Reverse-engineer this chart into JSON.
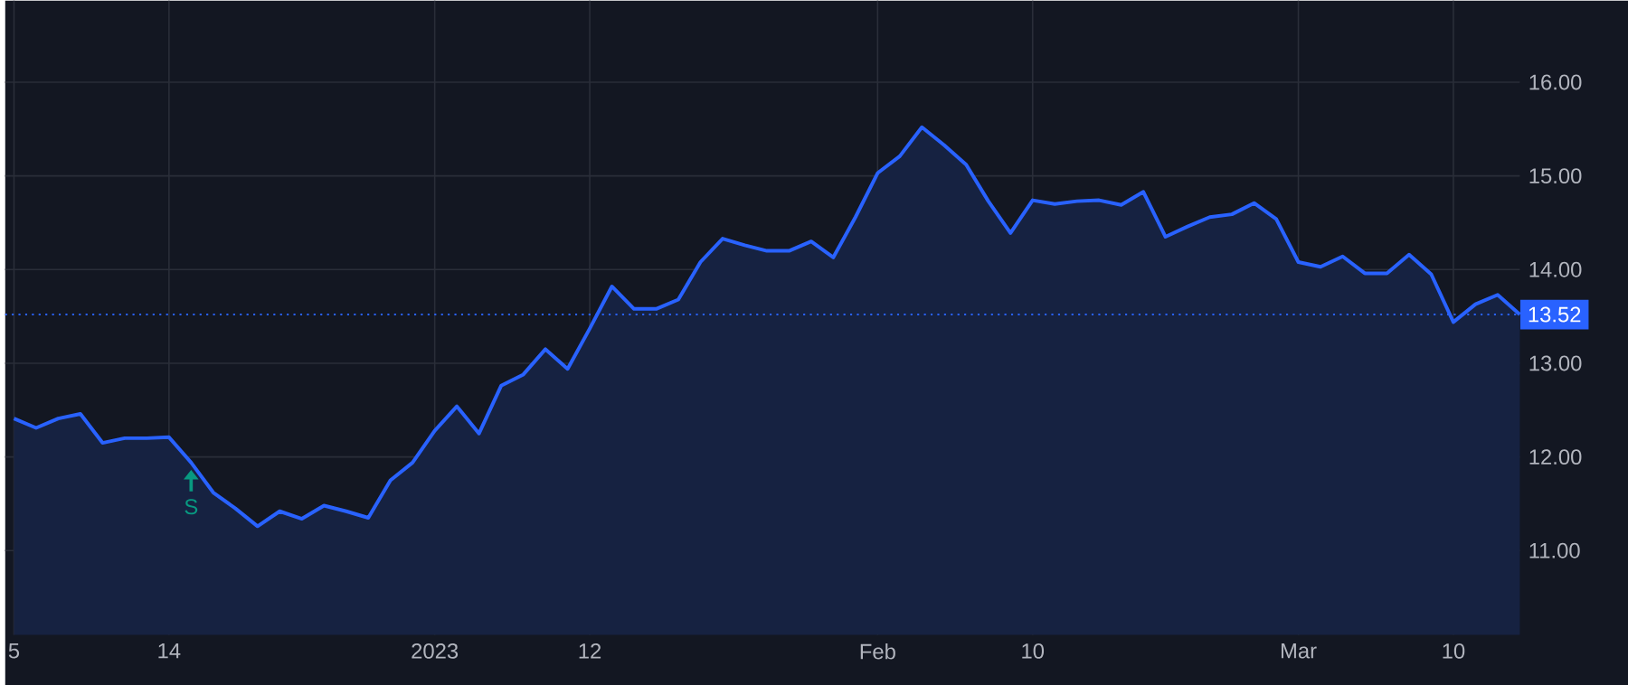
{
  "chart_data": {
    "type": "area",
    "categories": [
      "5",
      null,
      null,
      null,
      null,
      null,
      null,
      "14",
      null,
      null,
      null,
      null,
      null,
      null,
      null,
      null,
      null,
      null,
      null,
      "2023",
      null,
      null,
      null,
      null,
      null,
      null,
      "12",
      null,
      null,
      null,
      null,
      null,
      null,
      null,
      null,
      null,
      null,
      null,
      null,
      "Feb",
      null,
      null,
      null,
      null,
      null,
      null,
      "10",
      null,
      null,
      null,
      null,
      null,
      null,
      null,
      null,
      null,
      null,
      null,
      "Mar",
      null,
      null,
      null,
      null,
      null,
      null,
      "10",
      null,
      null,
      null
    ],
    "series": [
      {
        "color": "#2962ff",
        "values": [
          12.41,
          12.31,
          12.41,
          12.46,
          12.15,
          12.2,
          12.2,
          12.21,
          11.94,
          11.62,
          11.45,
          11.26,
          11.42,
          11.34,
          11.48,
          11.42,
          11.35,
          11.75,
          11.94,
          12.28,
          12.54,
          12.25,
          12.76,
          12.88,
          13.15,
          12.94,
          13.37,
          13.82,
          13.58,
          13.58,
          13.68,
          14.08,
          14.33,
          14.26,
          14.2,
          14.2,
          14.3,
          14.13,
          14.56,
          15.03,
          15.21,
          15.52,
          15.33,
          15.12,
          14.73,
          14.39,
          14.74,
          14.7,
          14.73,
          14.74,
          14.69,
          14.83,
          14.35,
          14.46,
          14.56,
          14.59,
          14.71,
          14.54,
          14.08,
          14.03,
          14.14,
          13.96,
          13.96,
          14.16,
          13.95,
          13.44,
          13.63,
          13.73,
          13.52
        ]
      }
    ],
    "ylim": [
      10.1,
      16.87
    ],
    "yticks": [
      {
        "value": 11,
        "label": "11.00"
      },
      {
        "value": 12,
        "label": "12.00"
      },
      {
        "value": 13,
        "label": "13.00"
      },
      {
        "value": 14,
        "label": "14.00"
      },
      {
        "value": 15,
        "label": "15.00"
      },
      {
        "value": 16,
        "label": "16.00"
      }
    ],
    "grid": true,
    "ref_lines": [
      {
        "axis": "y",
        "value": 13.52,
        "label": "13.52",
        "color": "#2962ff",
        "line_style": "dotted"
      }
    ],
    "annotations": [
      {
        "text": "S",
        "y": 11.94
      }
    ]
  }
}
